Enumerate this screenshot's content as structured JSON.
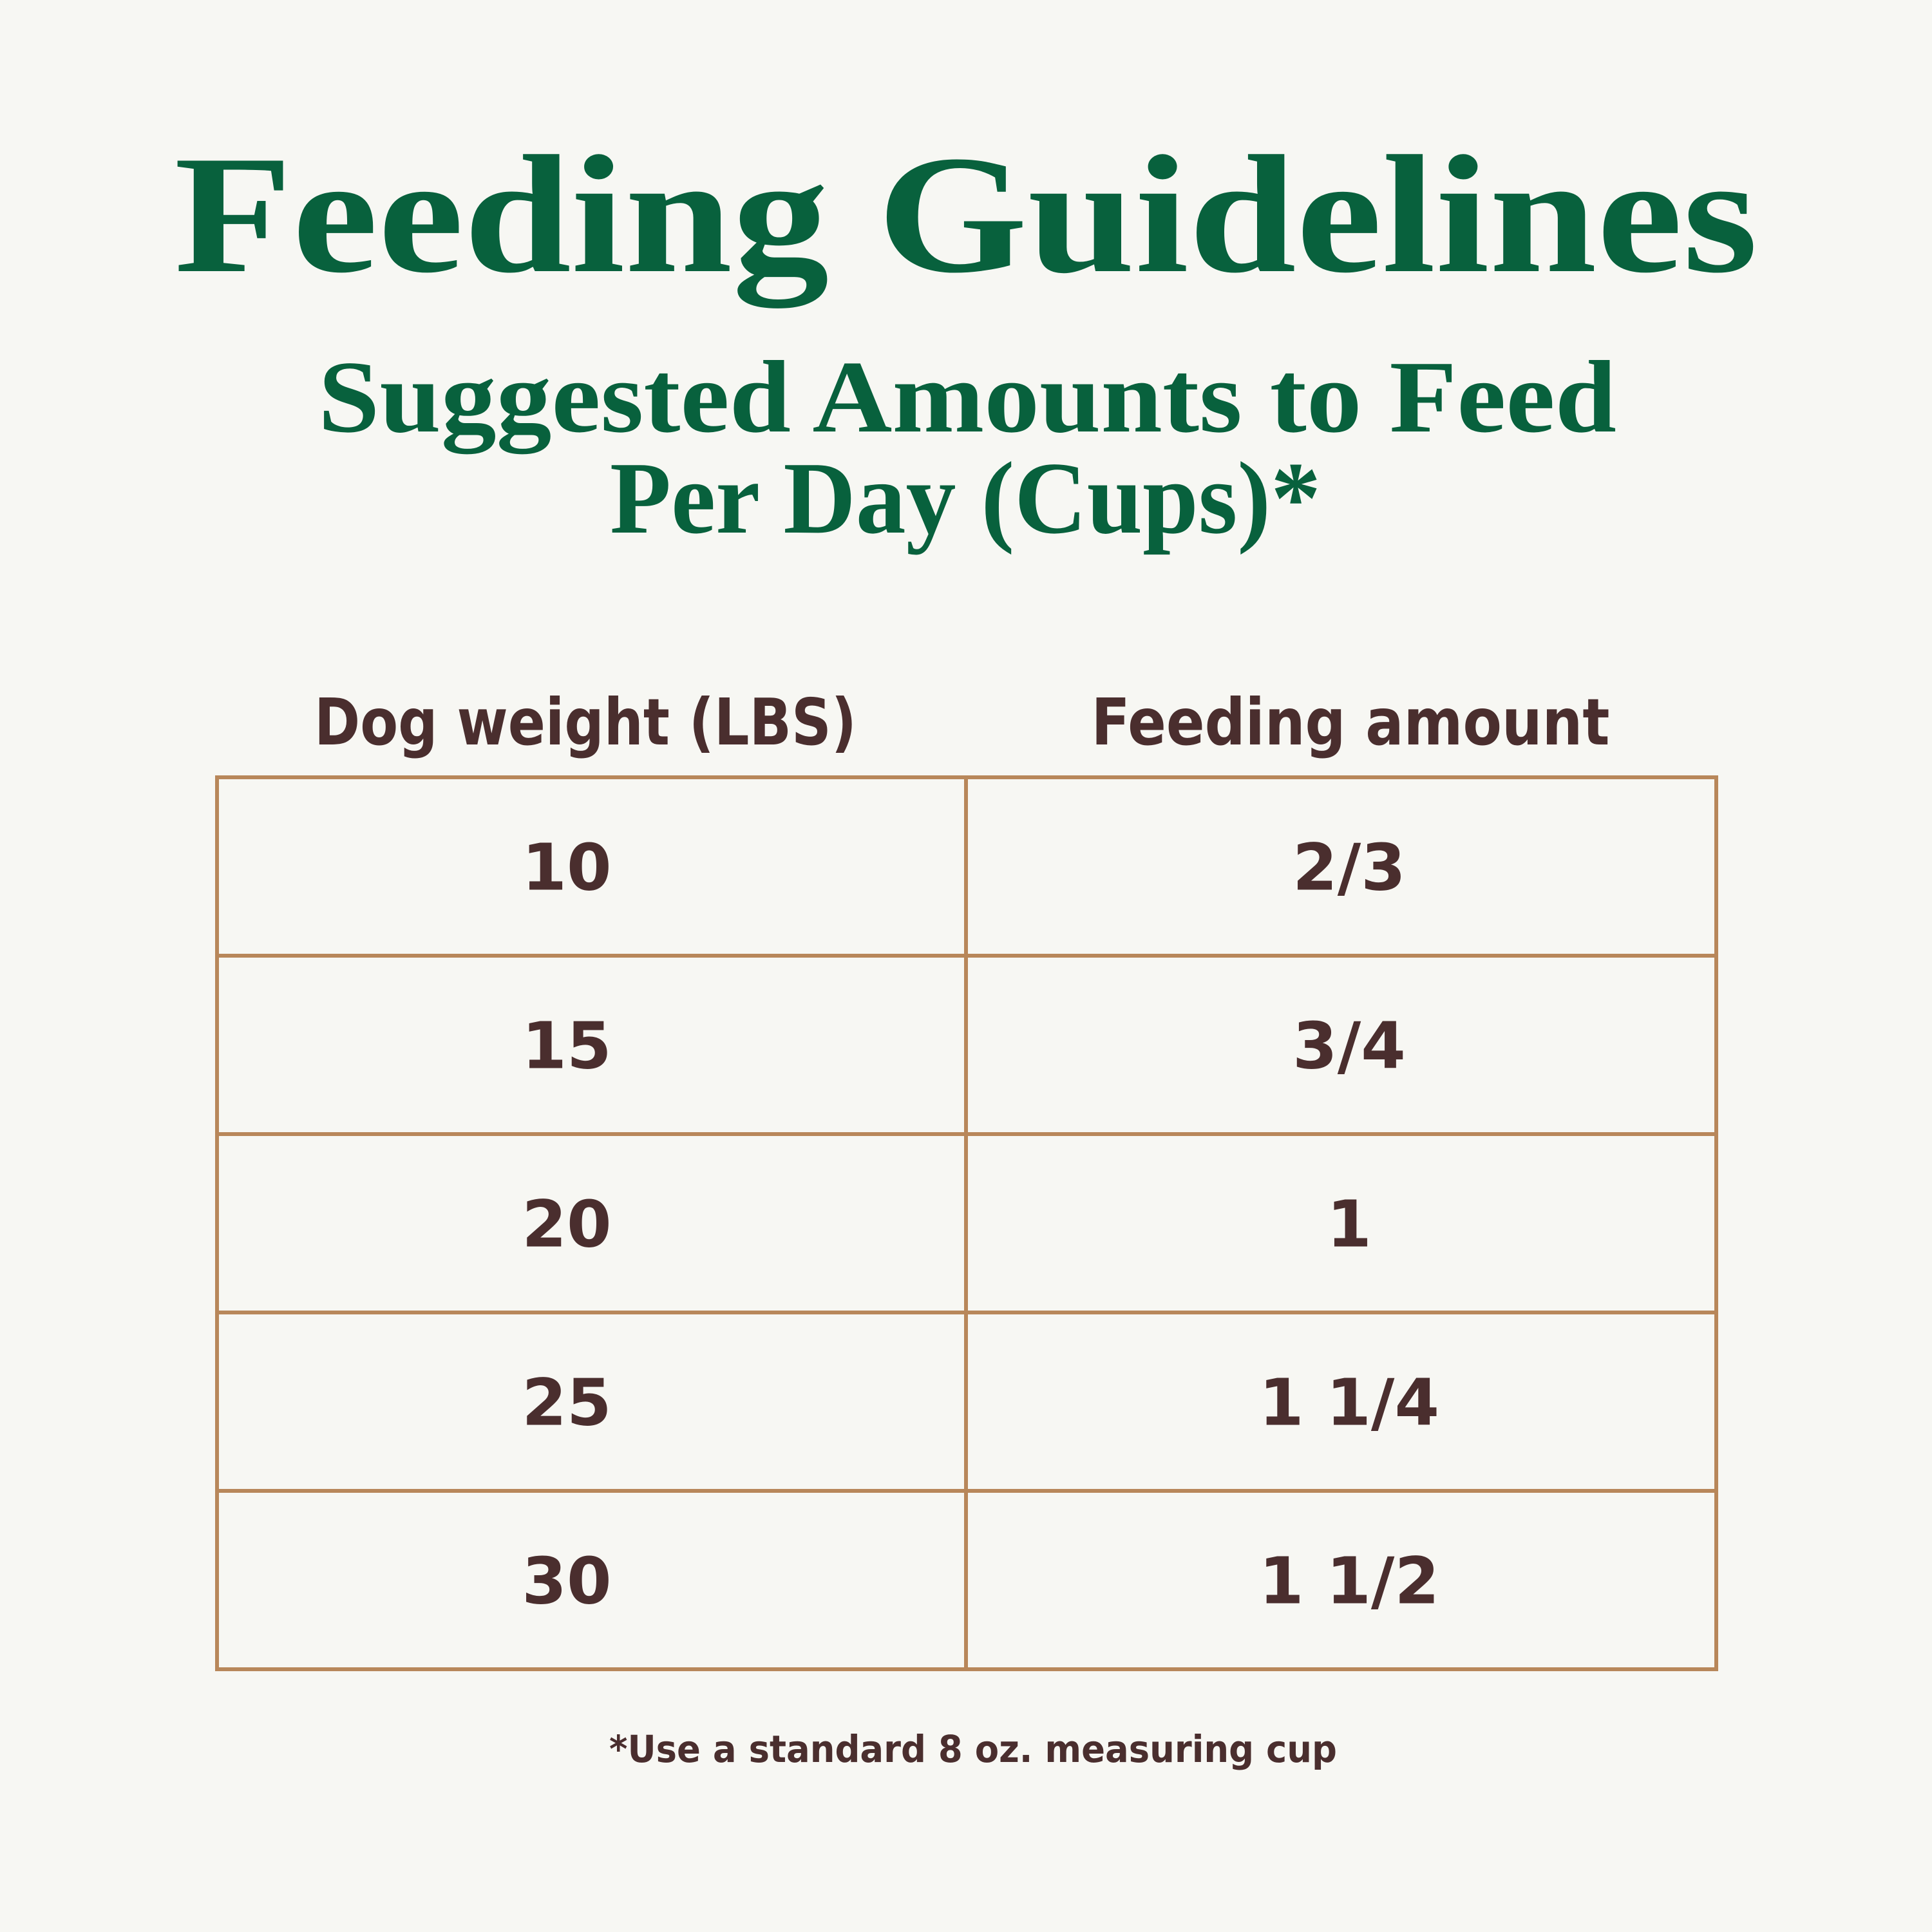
{
  "header": {
    "title": "Feeding Guidelines",
    "subtitle": [
      "Suggested Amounts to Feed",
      "Per Day (Cups)*"
    ]
  },
  "table": {
    "columns": [
      "Dog weight (LBS)",
      "Feeding amount"
    ],
    "rows": [
      [
        "10",
        "2/3"
      ],
      [
        "15",
        "3/4"
      ],
      [
        "20",
        "1"
      ],
      [
        "25",
        "1 1/4"
      ],
      [
        "30",
        "1 1/2"
      ]
    ]
  },
  "footnote": "*Use a standard 8 oz. measuring cup"
}
